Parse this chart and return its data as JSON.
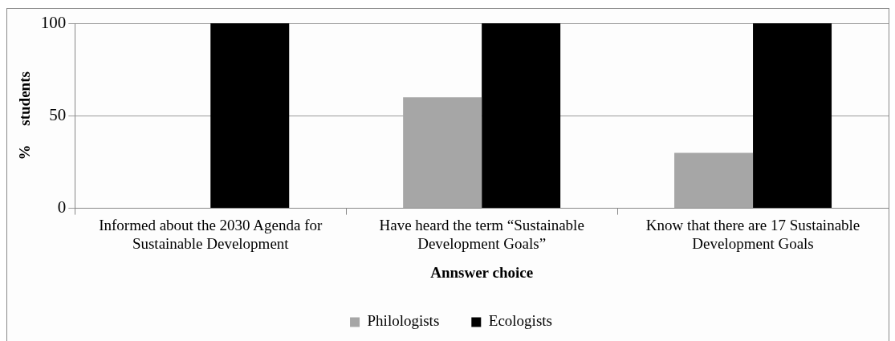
{
  "chart_data": {
    "type": "bar",
    "xlabel": "Annswer choice",
    "ylabel": "%     students",
    "categories": [
      "Informed about the 2030 Agenda for Sustainable Development",
      "Have heard the term “Sustainable Development Goals”",
      "Know that there are 17 Sustainable Development Goals"
    ],
    "series": [
      {
        "name": "Philologists",
        "color": "#a6a6a6",
        "values": [
          0,
          60,
          30
        ]
      },
      {
        "name": "Ecologists",
        "color": "#000000",
        "values": [
          100,
          100,
          100
        ]
      }
    ],
    "ylim": [
      0,
      100
    ],
    "yticks": [
      0,
      50,
      100
    ],
    "grid": "y",
    "legend": "bottom"
  }
}
